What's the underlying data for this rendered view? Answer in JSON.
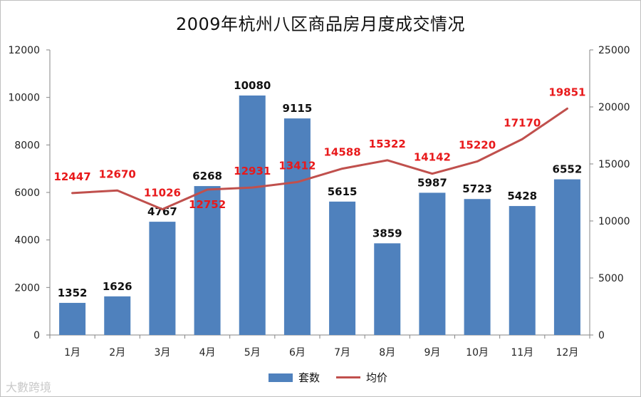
{
  "chart_data": {
    "type": "bar+line",
    "title": "2009年杭州八区商品房月度成交情况",
    "categories": [
      "1月",
      "2月",
      "3月",
      "4月",
      "5月",
      "6月",
      "7月",
      "8月",
      "9月",
      "10月",
      "11月",
      "12月"
    ],
    "series": [
      {
        "name": "套数",
        "type": "bar",
        "axis": "left",
        "color": "#4f81bd",
        "values": [
          1352,
          1626,
          4767,
          6268,
          10080,
          9115,
          5615,
          3859,
          5987,
          5723,
          5428,
          6552
        ]
      },
      {
        "name": "均价",
        "type": "line",
        "axis": "right",
        "color": "#c0504d",
        "values": [
          12447,
          12670,
          11026,
          12752,
          12931,
          13412,
          14588,
          15322,
          14142,
          15220,
          17170,
          19851
        ]
      }
    ],
    "y_left": {
      "ylim": [
        0,
        12000
      ],
      "ticks": [
        0,
        2000,
        4000,
        6000,
        8000,
        10000,
        12000
      ]
    },
    "y_right": {
      "ylim": [
        0,
        25000
      ],
      "ticks": [
        0,
        5000,
        10000,
        15000,
        20000,
        25000
      ]
    },
    "grid": false,
    "legend": "bottom",
    "data_label_color": "#e8191b"
  },
  "watermark": "大數跨境"
}
